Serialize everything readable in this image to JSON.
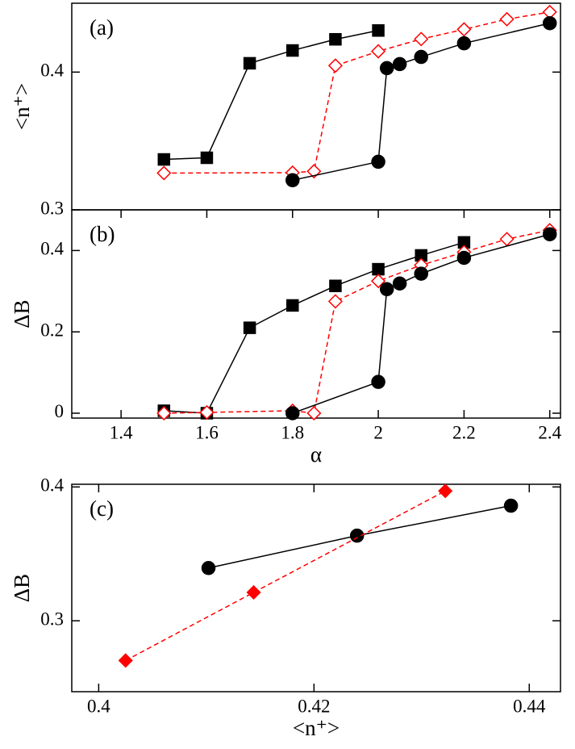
{
  "chart_data": [
    {
      "type": "line",
      "panel_label": "(a)",
      "ylabel": "<n⁺>",
      "xlim": [
        1.285,
        2.425
      ],
      "ylim": [
        0.3,
        0.45
      ],
      "yticks": [
        0.3,
        0.4
      ],
      "series": [
        {
          "color": "#000000",
          "marker": "square",
          "filled": true,
          "dashed": false,
          "x": [
            1.5,
            1.6,
            1.7,
            1.8,
            1.9,
            2.0
          ],
          "values": [
            0.3366,
            0.3378,
            0.4064,
            0.4157,
            0.4238,
            0.4302
          ]
        },
        {
          "color": "#ff0000",
          "marker": "diamond",
          "filled": false,
          "dashed": true,
          "x": [
            1.5,
            1.8,
            1.85,
            1.9,
            2.0,
            2.1,
            2.2,
            2.3,
            2.4
          ],
          "values": [
            0.3267,
            0.327,
            0.328,
            0.4047,
            0.4151,
            0.424,
            0.431,
            0.4384,
            0.4436
          ]
        },
        {
          "color": "#000000",
          "marker": "circle",
          "filled": true,
          "dashed": false,
          "x": [
            1.8,
            2.0,
            2.02,
            2.05,
            2.1,
            2.2,
            2.4
          ],
          "values": [
            0.3215,
            0.3349,
            0.4029,
            0.4058,
            0.411,
            0.4209,
            0.4355
          ]
        }
      ]
    },
    {
      "type": "line",
      "panel_label": "(b)",
      "ylabel": "ΔB",
      "xlabel": "α",
      "xlim": [
        1.285,
        2.425
      ],
      "xticks": [
        1.4,
        1.6,
        1.8,
        2,
        2.2,
        2.4
      ],
      "ylim": [
        -0.012,
        0.5
      ],
      "yticks": [
        0,
        0.2,
        0.4
      ],
      "series": [
        {
          "color": "#000000",
          "marker": "square",
          "filled": true,
          "dashed": false,
          "x": [
            1.5,
            1.6,
            1.7,
            1.8,
            1.9,
            2.0,
            2.1,
            2.2
          ],
          "values": [
            0.006,
            0,
            0.21,
            0.265,
            0.313,
            0.354,
            0.388,
            0.42
          ]
        },
        {
          "color": "#ff0000",
          "marker": "diamond",
          "filled": false,
          "dashed": true,
          "x": [
            1.5,
            1.6,
            1.8,
            1.85,
            1.9,
            2.0,
            2.1,
            2.2,
            2.3,
            2.4
          ],
          "values": [
            0,
            0.002,
            0.006,
            0,
            0.275,
            0.325,
            0.364,
            0.396,
            0.428,
            0.45
          ]
        },
        {
          "color": "#000000",
          "marker": "circle",
          "filled": true,
          "dashed": false,
          "x": [
            1.8,
            2.0,
            2.02,
            2.05,
            2.1,
            2.2,
            2.4
          ],
          "values": [
            0,
            0.077,
            0.305,
            0.319,
            0.343,
            0.382,
            0.44
          ]
        }
      ]
    },
    {
      "type": "line",
      "panel_label": "(c)",
      "ylabel": "ΔB",
      "xlabel": "<n⁺>",
      "xlim": [
        0.3975,
        0.4429
      ],
      "xticks": [
        0.4,
        0.42,
        0.44
      ],
      "ylim": [
        0.247,
        0.402
      ],
      "yticks": [
        0.3,
        0.4
      ],
      "series": [
        {
          "color": "#000000",
          "marker": "circle",
          "filled": true,
          "dashed": false,
          "x": [
            0.4102,
            0.424,
            0.4383
          ],
          "values": [
            0.3394,
            0.3636,
            0.386
          ]
        },
        {
          "color": "#ff0000",
          "marker": "diamond",
          "filled": true,
          "dashed": true,
          "x": [
            0.4025,
            0.4144,
            0.4322
          ],
          "values": [
            0.2703,
            0.3212,
            0.397
          ]
        }
      ]
    }
  ]
}
